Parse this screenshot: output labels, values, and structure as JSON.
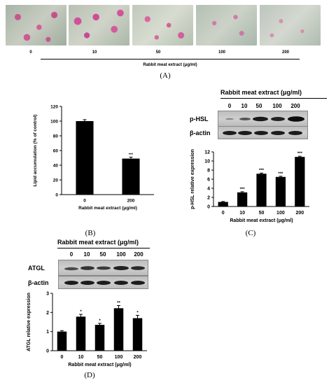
{
  "panelA": {
    "doses": [
      "0",
      "10",
      "50",
      "100",
      "200"
    ],
    "xlabel": "Rabbit meat extract (μg/ml)",
    "label": "(A)"
  },
  "panelB": {
    "label": "(B)",
    "chart_data": {
      "type": "bar",
      "categories": [
        "0",
        "200"
      ],
      "values": [
        100,
        49
      ],
      "errors": [
        2,
        2
      ],
      "significance": [
        "",
        "***"
      ],
      "ylabel": "Lipid accumulation (% of control)",
      "xlabel": "Rabbit meat extract (μg/ml)",
      "ylim": [
        0,
        120
      ],
      "yticks": [
        "0",
        "20",
        "40",
        "60",
        "80",
        "100",
        "120"
      ]
    }
  },
  "panelC": {
    "label": "(C)",
    "title": "Rabbit meat extract (μg/ml)",
    "lanes": [
      "0",
      "10",
      "50",
      "100",
      "200"
    ],
    "blot_labels": [
      "p-HSL",
      "β-actin"
    ],
    "chart_data": {
      "type": "bar",
      "categories": [
        "0",
        "10",
        "50",
        "100",
        "200"
      ],
      "values": [
        1.0,
        3.1,
        7.2,
        6.5,
        10.9
      ],
      "errors": [
        0.1,
        0.15,
        0.15,
        0.15,
        0.15
      ],
      "significance": [
        "",
        "***",
        "***",
        "***",
        "***"
      ],
      "ylabel": "p-HSL relative expression",
      "xlabel": "Rabbit meat extract (μg/ml)",
      "ylim": [
        0,
        12
      ],
      "yticks": [
        "0",
        "2",
        "4",
        "6",
        "8",
        "10",
        "12"
      ]
    }
  },
  "panelD": {
    "label": "(D)",
    "title": "Rabbit meat extract (μg/ml)",
    "lanes": [
      "0",
      "10",
      "50",
      "100",
      "200"
    ],
    "blot_labels": [
      "ATGL",
      "β-actin"
    ],
    "chart_data": {
      "type": "bar",
      "categories": [
        "0",
        "10",
        "50",
        "100",
        "200"
      ],
      "values": [
        1.0,
        1.78,
        1.35,
        2.22,
        1.7
      ],
      "errors": [
        0.05,
        0.12,
        0.08,
        0.14,
        0.15
      ],
      "significance": [
        "",
        "*",
        "*",
        "**",
        "*"
      ],
      "ylabel": "ATGL relative expression",
      "xlabel": "Rabbit meat extract (μg/ml)",
      "ylim": [
        0,
        3
      ],
      "yticks": [
        "0",
        "1",
        "2",
        "3"
      ]
    }
  }
}
